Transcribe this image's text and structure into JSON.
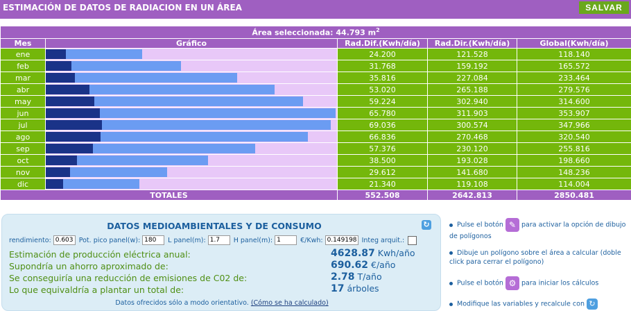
{
  "header": {
    "title": "ESTIMACIÓN DE DATOS DE RADIACION EN UN ÁREA",
    "save_label": "SALVAR"
  },
  "table": {
    "area_label": "Área seleccionada: 44.793 m",
    "area_sup": "2",
    "columns": [
      "Mes",
      "Gráfico",
      "Rad.Dif.(Kwh/día)",
      "Rad.Dir.(Kwh/día)",
      "Global(Kwh/día)"
    ],
    "rows": [
      {
        "mes": "ene",
        "dif": "24.200",
        "dir": "121.528",
        "glob": "118.140"
      },
      {
        "mes": "feb",
        "dif": "31.768",
        "dir": "159.192",
        "glob": "165.572"
      },
      {
        "mes": "mar",
        "dif": "35.816",
        "dir": "227.084",
        "glob": "233.464"
      },
      {
        "mes": "abr",
        "dif": "53.020",
        "dir": "265.188",
        "glob": "279.576"
      },
      {
        "mes": "may",
        "dif": "59.224",
        "dir": "302.940",
        "glob": "314.600"
      },
      {
        "mes": "jun",
        "dif": "65.780",
        "dir": "311.903",
        "glob": "353.907"
      },
      {
        "mes": "jul",
        "dif": "69.036",
        "dir": "300.574",
        "glob": "347.966"
      },
      {
        "mes": "ago",
        "dif": "66.836",
        "dir": "270.468",
        "glob": "320.540"
      },
      {
        "mes": "sep",
        "dif": "57.376",
        "dir": "230.120",
        "glob": "255.816"
      },
      {
        "mes": "oct",
        "dif": "38.500",
        "dir": "193.028",
        "glob": "198.660"
      },
      {
        "mes": "nov",
        "dif": "29.612",
        "dir": "141.680",
        "glob": "148.236"
      },
      {
        "mes": "dic",
        "dif": "21.340",
        "dir": "119.108",
        "glob": "114.004"
      }
    ],
    "totals": {
      "label": "TOTALES",
      "dif": "552.508",
      "dir": "2642.813",
      "glob": "2850.481"
    }
  },
  "chart_data": {
    "type": "bar",
    "orientation": "horizontal",
    "categories": [
      "ene",
      "feb",
      "mar",
      "abr",
      "may",
      "jun",
      "jul",
      "ago",
      "sep",
      "oct",
      "nov",
      "dic"
    ],
    "series": [
      {
        "name": "Rad.Dif.(Kwh/día)",
        "values": [
          24.2,
          31.768,
          35.816,
          53.02,
          59.224,
          65.78,
          69.036,
          66.836,
          57.376,
          38.5,
          29.612,
          21.34
        ]
      },
      {
        "name": "Global(Kwh/día)",
        "values": [
          118.14,
          165.572,
          233.464,
          279.576,
          314.6,
          353.907,
          347.966,
          320.54,
          255.816,
          198.66,
          148.236,
          114.004
        ]
      }
    ],
    "xlim": [
      0,
      355
    ],
    "colors": {
      "dif": "#1a3388",
      "glob": "#6b9cf2",
      "background": "#e8c8f8"
    }
  },
  "env": {
    "title": "DATOS MEDIOAMBIENTALES Y DE CONSUMO",
    "inputs": {
      "rendimiento_label": "rendimiento:",
      "rendimiento": "0.603",
      "pot_label": "Pot. pico panel(w):",
      "pot": "180",
      "l_label": "L panel(m):",
      "l": "1.7",
      "h_label": "H panel(m):",
      "h": "1",
      "kwh_label": "€/Kwh:",
      "kwh": "0.149198",
      "integ_label": "Integ arquit.:"
    },
    "results": [
      {
        "label": "Estimación de producción eléctrica anual:",
        "value": "4628.87",
        "unit": "Kwh/año"
      },
      {
        "label": "Supondría un ahorro aproximado de:",
        "value": "690.62",
        "unit": "€/año"
      },
      {
        "label": "Se conseguiría una reducción de emisiones de C02 de:",
        "value": "2.78",
        "unit": "T/año"
      },
      {
        "label": "Lo que equivaldría a plantar un total de:",
        "value": "17",
        "unit": "árboles"
      }
    ],
    "footnote": "Datos ofrecidos sólo a modo orientativo.",
    "footnote_link": "(Cómo se ha calculado)"
  },
  "help": {
    "item1_a": "Pulse el botón",
    "item1_b": "para activar la opción de dibujo de polígonos",
    "item2": "Dibuje un polígono sobre el área a calcular (doble click para cerrar el polígono)",
    "item3_a": "Pulse el botón",
    "item3_b": "para iniciar los cálculos",
    "item4": "Modifique las variables y recalcule con"
  }
}
